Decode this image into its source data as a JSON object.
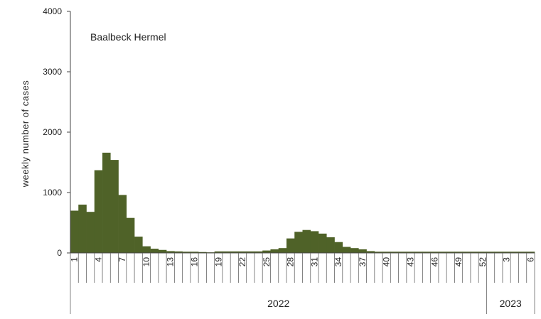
{
  "chart_data": {
    "type": "bar",
    "title": "",
    "annotation": "Baalbeck Hermel",
    "ylabel": "weekly number of cases",
    "xlabel": "",
    "ylim": [
      0,
      4000
    ],
    "yticks": [
      0,
      1000,
      2000,
      3000,
      4000
    ],
    "bar_color": "#4f6228",
    "grid": false,
    "weeks": [
      1,
      2,
      3,
      4,
      5,
      6,
      7,
      8,
      9,
      10,
      11,
      12,
      13,
      14,
      15,
      16,
      17,
      18,
      19,
      20,
      21,
      22,
      23,
      24,
      25,
      26,
      27,
      28,
      29,
      30,
      31,
      32,
      33,
      34,
      35,
      36,
      37,
      38,
      39,
      40,
      41,
      42,
      43,
      44,
      45,
      46,
      47,
      48,
      49,
      50,
      51,
      52,
      1,
      2,
      3,
      4,
      5,
      6
    ],
    "week_labels": [
      "1",
      "4",
      "7",
      "10",
      "13",
      "16",
      "19",
      "22",
      "25",
      "28",
      "31",
      "34",
      "37",
      "40",
      "43",
      "46",
      "49",
      "52",
      "3",
      "6"
    ],
    "week_label_index": [
      0,
      3,
      6,
      9,
      12,
      15,
      18,
      21,
      24,
      27,
      30,
      33,
      36,
      39,
      42,
      45,
      48,
      51,
      54,
      57
    ],
    "values": [
      700,
      800,
      680,
      1370,
      1660,
      1540,
      960,
      580,
      270,
      110,
      70,
      50,
      30,
      25,
      20,
      20,
      15,
      10,
      25,
      25,
      25,
      25,
      25,
      25,
      40,
      60,
      80,
      240,
      350,
      380,
      360,
      320,
      260,
      180,
      100,
      80,
      60,
      30,
      20,
      20,
      20,
      20,
      20,
      20,
      20,
      20,
      20,
      20,
      20,
      20,
      20,
      20,
      20,
      20,
      20,
      20,
      20,
      20
    ],
    "year_groups": [
      {
        "label": "2022",
        "start": 0,
        "count": 52
      },
      {
        "label": "2023",
        "start": 52,
        "count": 6
      }
    ]
  }
}
